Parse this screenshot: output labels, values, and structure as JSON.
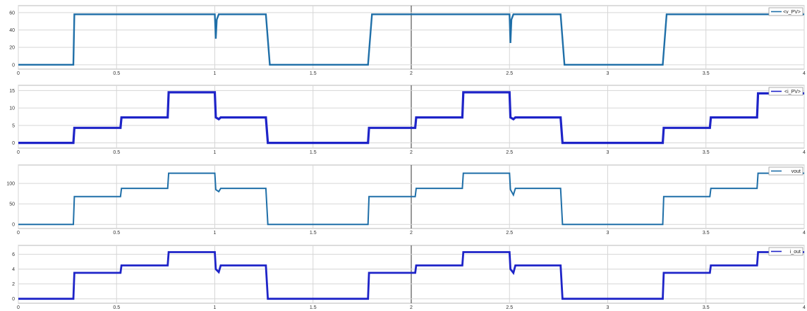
{
  "chart_data": [
    {
      "type": "line",
      "series": [
        {
          "name": "<v_PV>",
          "color": "#1f6fa8",
          "thick": 2.4,
          "x": [
            0,
            0.28,
            0.285,
            0.76,
            0.765,
            1.0,
            1.005,
            1.01,
            1.02,
            1.03,
            1.26,
            1.28,
            1.78,
            1.8,
            2.28,
            2.285,
            2.5,
            2.505,
            2.51,
            2.52,
            2.53,
            2.76,
            2.78,
            3.28,
            3.3,
            3.76,
            3.8,
            3.85,
            4.0
          ],
          "y": [
            0,
            0,
            58,
            58,
            58,
            58,
            30,
            52,
            58,
            58,
            58,
            0,
            0,
            58,
            58,
            58,
            58,
            25,
            52,
            58,
            58,
            58,
            0,
            0,
            58,
            58,
            58,
            58,
            58
          ]
        }
      ],
      "x_ticks": [
        "0",
        "0.5",
        "1",
        "1.5",
        "2",
        "2.5",
        "3",
        "3.5",
        "4"
      ],
      "y_ticks": [
        "0",
        "20",
        "40",
        "60"
      ],
      "xlim": [
        0,
        4
      ],
      "ylim": [
        -5,
        68
      ],
      "y_tick_values": [
        0,
        20,
        40,
        60
      ],
      "grid": true,
      "legend": "top-right"
    },
    {
      "type": "line",
      "series": [
        {
          "name": "<i_PV>",
          "color": "#1e24c8",
          "thick": 3.2,
          "x": [
            0,
            0.28,
            0.285,
            0.52,
            0.525,
            0.76,
            0.765,
            1.0,
            1.005,
            1.02,
            1.03,
            1.26,
            1.27,
            1.78,
            1.785,
            2.02,
            2.025,
            2.26,
            2.265,
            2.5,
            2.505,
            2.52,
            2.53,
            2.76,
            2.77,
            3.28,
            3.285,
            3.52,
            3.525,
            3.76,
            3.765,
            4.0
          ],
          "y": [
            0,
            0,
            4.3,
            4.3,
            7.3,
            7.3,
            14.5,
            14.5,
            7.3,
            6.8,
            7.3,
            7.3,
            0,
            0,
            4.3,
            4.3,
            7.3,
            7.3,
            14.5,
            14.5,
            7.3,
            6.8,
            7.3,
            7.3,
            0,
            0,
            4.3,
            4.3,
            7.3,
            7.3,
            14.2,
            14.2
          ]
        }
      ],
      "x_ticks": [
        "0",
        "0.5",
        "1",
        "1.5",
        "2",
        "2.5",
        "3",
        "3.5",
        "4"
      ],
      "y_ticks": [
        "0",
        "5",
        "10",
        "15"
      ],
      "xlim": [
        0,
        4
      ],
      "ylim": [
        -1.5,
        16.5
      ],
      "y_tick_values": [
        0,
        5,
        10,
        15
      ],
      "grid": true,
      "legend": "top-right"
    },
    {
      "type": "line",
      "series": [
        {
          "name": "vout",
          "color": "#1f6fa8",
          "thick": 2.0,
          "x": [
            0,
            0.28,
            0.285,
            0.52,
            0.525,
            0.76,
            0.765,
            1.0,
            1.005,
            1.02,
            1.03,
            1.26,
            1.27,
            1.78,
            1.785,
            2.02,
            2.025,
            2.26,
            2.265,
            2.5,
            2.505,
            2.52,
            2.53,
            2.76,
            2.77,
            3.28,
            3.285,
            3.52,
            3.525,
            3.76,
            3.765,
            4.0
          ],
          "y": [
            0,
            0,
            68,
            68,
            88,
            88,
            125,
            125,
            85,
            80,
            88,
            88,
            0,
            0,
            68,
            68,
            88,
            88,
            125,
            125,
            85,
            72,
            88,
            88,
            0,
            0,
            68,
            68,
            88,
            88,
            125,
            125
          ]
        }
      ],
      "x_ticks": [
        "0",
        "0.5",
        "1",
        "1.5",
        "2",
        "2.5",
        "3",
        "3.5",
        "4"
      ],
      "y_ticks": [
        "0",
        "50",
        "100"
      ],
      "xlim": [
        0,
        4
      ],
      "ylim": [
        -10,
        145
      ],
      "y_tick_values": [
        0,
        50,
        100
      ],
      "grid": true,
      "legend": "top-right"
    },
    {
      "type": "line",
      "series": [
        {
          "name": "i_out",
          "color": "#1e24c8",
          "thick": 2.8,
          "x": [
            0,
            0.28,
            0.285,
            0.52,
            0.525,
            0.76,
            0.765,
            1.0,
            1.005,
            1.02,
            1.03,
            1.26,
            1.27,
            1.78,
            1.785,
            2.02,
            2.025,
            2.26,
            2.265,
            2.5,
            2.505,
            2.52,
            2.53,
            2.76,
            2.77,
            3.28,
            3.285,
            3.52,
            3.525,
            3.76,
            3.765,
            4.0
          ],
          "y": [
            0,
            0,
            3.5,
            3.5,
            4.5,
            4.5,
            6.3,
            6.3,
            4.0,
            3.6,
            4.5,
            4.5,
            0,
            0,
            3.5,
            3.5,
            4.5,
            4.5,
            6.3,
            6.3,
            4.0,
            3.5,
            4.5,
            4.5,
            0,
            0,
            3.5,
            3.5,
            4.5,
            4.5,
            6.3,
            6.3
          ]
        }
      ],
      "x_ticks": [
        "0",
        "0.5",
        "1",
        "1.5",
        "2",
        "2.5",
        "3",
        "3.5",
        "4"
      ],
      "y_ticks": [
        "0",
        "2",
        "4",
        "6"
      ],
      "xlim": [
        0,
        4
      ],
      "ylim": [
        -0.6,
        7.2
      ],
      "y_tick_values": [
        0,
        2,
        4,
        6
      ],
      "grid": true,
      "legend": "top-right"
    }
  ]
}
